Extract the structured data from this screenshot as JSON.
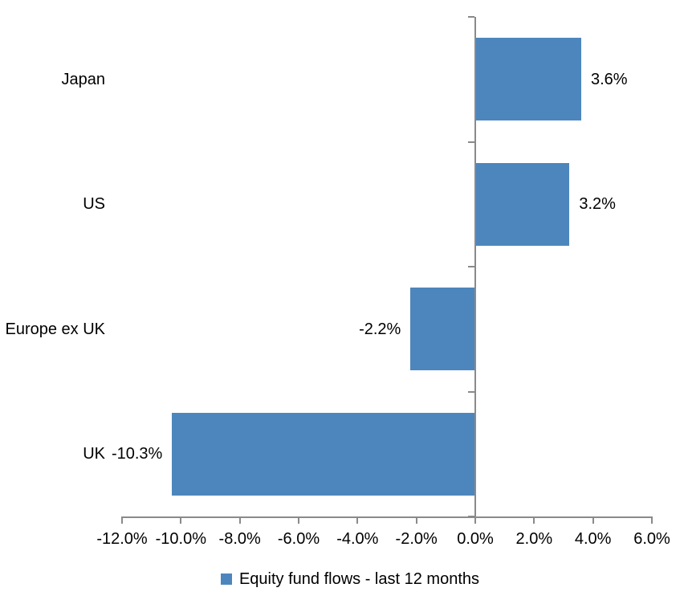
{
  "chart_data": {
    "type": "bar",
    "orientation": "horizontal",
    "title": "",
    "categories": [
      "Japan",
      "US",
      "Europe ex UK",
      "UK"
    ],
    "values": [
      3.6,
      3.2,
      -2.2,
      -10.3
    ],
    "value_labels": [
      "3.6%",
      "3.2%",
      "-2.2%",
      "-10.3%"
    ],
    "series": [
      {
        "name": "Equity fund flows - last 12 months",
        "values": [
          3.6,
          3.2,
          -2.2,
          -10.3
        ]
      }
    ],
    "xlabel": "",
    "ylabel": "",
    "xlim": [
      -12,
      6
    ],
    "x_ticks": [
      -12,
      -10,
      -8,
      -6,
      -4,
      -2,
      0,
      2,
      4,
      6
    ],
    "x_tick_labels": [
      "-12.0%",
      "-10.0%",
      "-8.0%",
      "-6.0%",
      "-4.0%",
      "-2.0%",
      "0.0%",
      "2.0%",
      "4.0%",
      "6.0%"
    ],
    "grid": false,
    "legend_position": "bottom",
    "colors": {
      "bar": "#4D86BD",
      "axis": "#8A8A8A",
      "text": "#000000",
      "background": "#FFFFFF"
    }
  },
  "legend": {
    "label": "Equity fund flows - last 12 months"
  }
}
